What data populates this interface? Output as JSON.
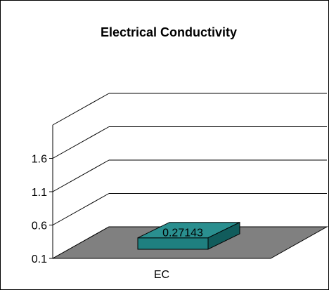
{
  "chart_data": {
    "type": "bar",
    "title": "Electrical Conductivity",
    "categories": [
      "EC"
    ],
    "values": [
      0.27143
    ],
    "data_labels": [
      "0.27143"
    ],
    "y_ticks": [
      "0.1",
      "0.6",
      "1.1",
      "1.6"
    ],
    "ylim": [
      0.1,
      2.1
    ],
    "grid": true,
    "style": "3d",
    "bar_color": "#1f8080",
    "floor_color": "#808080"
  }
}
